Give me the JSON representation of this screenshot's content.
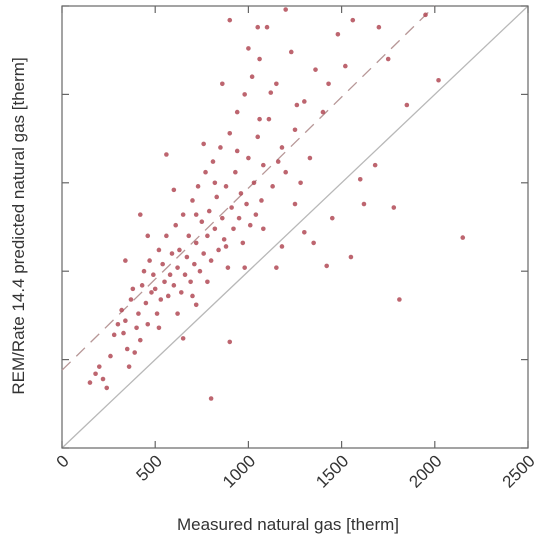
{
  "chart_data": {
    "type": "scatter",
    "title": "",
    "xlabel": "Measured natural gas [therm]",
    "ylabel": "REM/Rate 14.4 predicted natural gas [therm]",
    "xlim": [
      0,
      2500
    ],
    "ylim": [
      0,
      2500
    ],
    "x_ticks": [
      "0",
      "500",
      "1000",
      "1500",
      "2000",
      "2500"
    ],
    "y_ticks": [],
    "grid": false,
    "legend": "none",
    "reference_lines": [
      {
        "label": "1:1 line",
        "slope": 1.0,
        "intercept": 0,
        "style": "solid",
        "color": "#b8b8b8"
      },
      {
        "label": "fit",
        "slope": 1.03,
        "intercept": 440,
        "style": "dashed",
        "color": "#b79797"
      }
    ],
    "marker_color": "#b24a56",
    "points": [
      [
        150,
        370
      ],
      [
        180,
        420
      ],
      [
        200,
        460
      ],
      [
        220,
        390
      ],
      [
        240,
        340
      ],
      [
        260,
        520
      ],
      [
        280,
        640
      ],
      [
        300,
        700
      ],
      [
        320,
        780
      ],
      [
        330,
        650
      ],
      [
        340,
        720
      ],
      [
        350,
        560
      ],
      [
        360,
        460
      ],
      [
        370,
        840
      ],
      [
        380,
        900
      ],
      [
        390,
        540
      ],
      [
        400,
        680
      ],
      [
        410,
        760
      ],
      [
        420,
        610
      ],
      [
        430,
        920
      ],
      [
        440,
        1000
      ],
      [
        450,
        820
      ],
      [
        460,
        700
      ],
      [
        470,
        1060
      ],
      [
        480,
        880
      ],
      [
        490,
        980
      ],
      [
        500,
        900
      ],
      [
        510,
        760
      ],
      [
        520,
        1120
      ],
      [
        530,
        840
      ],
      [
        540,
        1040
      ],
      [
        550,
        940
      ],
      [
        560,
        1200
      ],
      [
        570,
        860
      ],
      [
        580,
        980
      ],
      [
        590,
        1100
      ],
      [
        600,
        920
      ],
      [
        610,
        1260
      ],
      [
        620,
        1020
      ],
      [
        630,
        1120
      ],
      [
        640,
        880
      ],
      [
        650,
        1320
      ],
      [
        660,
        980
      ],
      [
        670,
        1080
      ],
      [
        680,
        1200
      ],
      [
        690,
        940
      ],
      [
        700,
        1400
      ],
      [
        710,
        1040
      ],
      [
        720,
        1160
      ],
      [
        730,
        1480
      ],
      [
        740,
        1000
      ],
      [
        750,
        1280
      ],
      [
        760,
        1100
      ],
      [
        770,
        1560
      ],
      [
        780,
        1200
      ],
      [
        790,
        1340
      ],
      [
        800,
        1060
      ],
      [
        810,
        1620
      ],
      [
        820,
        1240
      ],
      [
        830,
        1420
      ],
      [
        840,
        1120
      ],
      [
        850,
        1700
      ],
      [
        860,
        1300
      ],
      [
        870,
        1180
      ],
      [
        880,
        1480
      ],
      [
        890,
        1020
      ],
      [
        900,
        1780
      ],
      [
        910,
        1360
      ],
      [
        920,
        1240
      ],
      [
        930,
        1560
      ],
      [
        940,
        1900
      ],
      [
        950,
        1300
      ],
      [
        960,
        1440
      ],
      [
        970,
        1160
      ],
      [
        980,
        2000
      ],
      [
        990,
        1380
      ],
      [
        1000,
        1640
      ],
      [
        1010,
        1260
      ],
      [
        1020,
        2100
      ],
      [
        1030,
        1500
      ],
      [
        1040,
        1320
      ],
      [
        1050,
        1760
      ],
      [
        1060,
        2200
      ],
      [
        1070,
        1400
      ],
      [
        1080,
        1600
      ],
      [
        1100,
        2380
      ],
      [
        1110,
        1860
      ],
      [
        1130,
        1480
      ],
      [
        1150,
        2060
      ],
      [
        1180,
        1700
      ],
      [
        1200,
        1560
      ],
      [
        1230,
        2240
      ],
      [
        1250,
        1800
      ],
      [
        1280,
        1500
      ],
      [
        1300,
        1960
      ],
      [
        1330,
        1640
      ],
      [
        1360,
        2140
      ],
      [
        1400,
        1900
      ],
      [
        1430,
        2060
      ],
      [
        1480,
        2340
      ],
      [
        1520,
        2160
      ],
      [
        1560,
        2420
      ],
      [
        1600,
        1520
      ],
      [
        1700,
        2380
      ],
      [
        1780,
        1360
      ],
      [
        1850,
        1940
      ],
      [
        2020,
        2080
      ],
      [
        2150,
        1190
      ],
      [
        1810,
        840
      ],
      [
        800,
        280
      ],
      [
        650,
        620
      ],
      [
        720,
        810
      ],
      [
        900,
        600
      ],
      [
        1150,
        1020
      ],
      [
        1300,
        1220
      ],
      [
        1450,
        1300
      ],
      [
        1550,
        1080
      ],
      [
        1620,
        1380
      ],
      [
        1750,
        2200
      ],
      [
        1950,
        2450
      ],
      [
        1200,
        2480
      ],
      [
        1050,
        2380
      ],
      [
        900,
        2420
      ],
      [
        560,
        1660
      ],
      [
        460,
        1200
      ],
      [
        340,
        1060
      ],
      [
        420,
        1320
      ],
      [
        600,
        1460
      ],
      [
        760,
        1720
      ],
      [
        860,
        2060
      ],
      [
        1000,
        2260
      ],
      [
        1120,
        2010
      ],
      [
        1250,
        1380
      ],
      [
        1350,
        1160
      ],
      [
        1420,
        1030
      ],
      [
        1680,
        1600
      ],
      [
        700,
        860
      ],
      [
        780,
        940
      ],
      [
        880,
        1140
      ],
      [
        980,
        1020
      ],
      [
        1080,
        1240
      ],
      [
        1180,
        1140
      ],
      [
        520,
        680
      ],
      [
        620,
        760
      ],
      [
        720,
        1320
      ],
      [
        820,
        1500
      ],
      [
        940,
        1680
      ],
      [
        1060,
        1860
      ],
      [
        1160,
        1620
      ],
      [
        1260,
        1940
      ]
    ]
  }
}
